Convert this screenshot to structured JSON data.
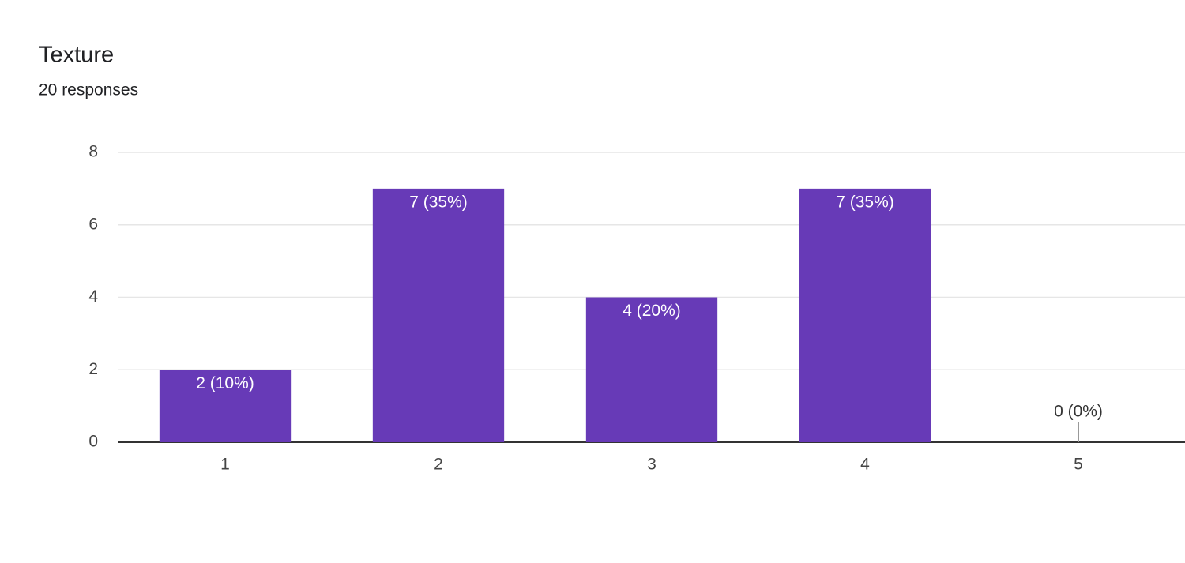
{
  "chart_data": {
    "type": "bar",
    "title": "Texture",
    "subtitle": "20 responses",
    "categories": [
      "1",
      "2",
      "3",
      "4",
      "5"
    ],
    "values": [
      2,
      7,
      4,
      7,
      0
    ],
    "value_labels": [
      "2 (10%)",
      "7 (35%)",
      "4 (20%)",
      "7 (35%)",
      "0 (0%)"
    ],
    "color": "#673ab7",
    "ylim": [
      0,
      8
    ],
    "yticks": [
      0,
      2,
      4,
      6,
      8
    ],
    "grid": true
  }
}
